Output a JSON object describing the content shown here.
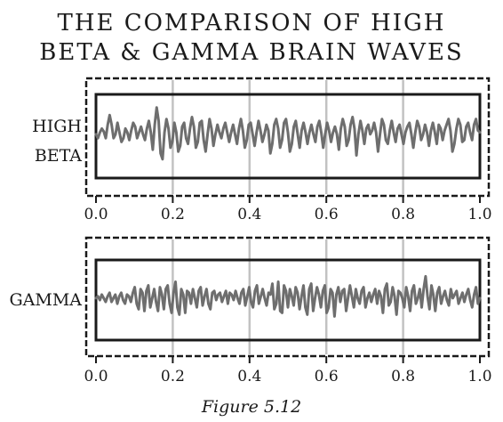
{
  "title_lines": [
    "THE COMPARISON OF HIGH",
    "BETA & GAMMA BRAIN WAVES"
  ],
  "caption": "Figure 5.12",
  "colors": {
    "wave": "#6e6e6e",
    "grid": "#c2c2c2",
    "frame": "#1a1a1a",
    "text": "#1a1a1a"
  },
  "chart_data": [
    {
      "type": "line",
      "row_label_lines": [
        "HIGH",
        "BETA"
      ],
      "x_ticks": [
        "0.0",
        "0.2",
        "0.4",
        "0.6",
        "0.8",
        "1.0"
      ],
      "xlim": [
        0,
        1
      ],
      "ylim": [
        -1,
        1
      ],
      "grid_x": [
        0.2,
        0.4,
        0.6,
        0.8
      ],
      "y_values": [
        0.05,
        -0.05,
        0.1,
        0.2,
        0.12,
        -0.05,
        0.3,
        0.55,
        0.3,
        -0.05,
        0.05,
        0.35,
        0.1,
        -0.15,
        -0.05,
        0.2,
        0.1,
        -0.1,
        0.15,
        0.35,
        0.25,
        -0.05,
        0.1,
        0.25,
        0.05,
        -0.1,
        0.2,
        0.4,
        0.1,
        -0.35,
        0.3,
        0.75,
        0.4,
        -0.45,
        -0.6,
        0.1,
        0.45,
        0.2,
        -0.3,
        -0.15,
        0.35,
        0.1,
        -0.4,
        -0.25,
        0.25,
        0.35,
        -0.05,
        -0.2,
        0.2,
        0.5,
        0.25,
        -0.3,
        -0.15,
        0.35,
        0.4,
        -0.1,
        -0.4,
        0.05,
        0.45,
        0.2,
        -0.25,
        0.05,
        0.3,
        0.1,
        -0.05,
        0.2,
        0.35,
        0.1,
        -0.15,
        0.1,
        0.3,
        0.05,
        -0.2,
        0.2,
        0.45,
        0.15,
        -0.3,
        -0.1,
        0.3,
        0.35,
        0.05,
        -0.25,
        0.1,
        0.4,
        0.15,
        -0.15,
        0.05,
        0.3,
        0.15,
        -0.45,
        -0.2,
        0.3,
        0.45,
        0.2,
        -0.3,
        -0.1,
        0.35,
        0.45,
        0.1,
        -0.4,
        -0.2,
        0.25,
        0.4,
        0.05,
        -0.3,
        0.15,
        0.35,
        0.1,
        -0.2,
        0.1,
        0.3,
        0.05,
        -0.15,
        0.25,
        0.4,
        0.1,
        -0.3,
        0.05,
        0.35,
        0.15,
        -0.15,
        0.1,
        0.25,
        0.05,
        -0.35,
        0.2,
        0.45,
        0.25,
        -0.25,
        -0.1,
        0.3,
        0.5,
        0.2,
        -0.5,
        0.05,
        0.4,
        0.15,
        -0.2,
        0.2,
        0.3,
        0.05,
        0.15,
        0.35,
        0.1,
        -0.4,
        0.05,
        0.45,
        0.3,
        -0.1,
        -0.2,
        0.15,
        0.4,
        0.1,
        -0.15,
        0.2,
        0.3,
        0.05,
        -0.2,
        0.1,
        0.25,
        0.35,
        0.05,
        -0.3,
        0.1,
        0.4,
        0.25,
        -0.1,
        0.05,
        0.3,
        0.1,
        -0.25,
        0.15,
        0.35,
        0.1,
        -0.2,
        0.3,
        0.2,
        -0.1,
        0.15,
        0.3,
        0.45,
        0.15,
        -0.4,
        -0.2,
        0.2,
        0.45,
        0.3,
        -0.15,
        -0.1,
        0.25,
        0.35,
        0.1,
        -0.1,
        0.3,
        0.45,
        0.15,
        0.1
      ]
    },
    {
      "type": "line",
      "row_label_lines": [
        "GAMMA"
      ],
      "x_ticks": [
        "0.0",
        "0.2",
        "0.4",
        "0.6",
        "0.8",
        "1.0"
      ],
      "xlim": [
        0,
        1
      ],
      "ylim": [
        -1,
        1
      ],
      "grid_x": [
        0.2,
        0.4,
        0.6,
        0.8
      ],
      "y_values": [
        0.05,
        0.1,
        0.0,
        0.15,
        0.05,
        -0.05,
        0.1,
        0.2,
        -0.05,
        0.05,
        0.15,
        -0.1,
        0.1,
        0.2,
        0.0,
        -0.1,
        0.15,
        0.1,
        -0.05,
        0.2,
        0.35,
        -0.1,
        -0.25,
        0.3,
        0.2,
        -0.3,
        0.25,
        0.4,
        -0.2,
        0.05,
        0.3,
        -0.05,
        -0.3,
        0.35,
        0.15,
        -0.25,
        0.3,
        0.4,
        -0.1,
        -0.35,
        0.2,
        0.5,
        -0.2,
        -0.4,
        0.3,
        0.15,
        -0.35,
        0.25,
        0.2,
        -0.1,
        0.3,
        0.05,
        -0.2,
        0.25,
        0.35,
        -0.15,
        0.1,
        0.3,
        -0.1,
        -0.25,
        0.2,
        0.25,
        0.0,
        0.15,
        0.2,
        -0.05,
        0.1,
        0.25,
        -0.1,
        0.2,
        0.15,
        0.0,
        0.25,
        0.05,
        -0.1,
        0.2,
        0.3,
        -0.15,
        0.1,
        0.35,
        -0.05,
        -0.2,
        0.25,
        0.4,
        -0.1,
        0.1,
        0.3,
        0.05,
        -0.15,
        0.2,
        0.15,
        0.45,
        -0.25,
        -0.1,
        0.5,
        -0.3,
        -0.35,
        0.4,
        0.25,
        -0.2,
        0.3,
        0.1,
        -0.15,
        0.35,
        0.2,
        -0.25,
        0.1,
        0.4,
        -0.2,
        -0.4,
        0.3,
        0.45,
        -0.3,
        0.05,
        0.35,
        0.15,
        -0.2,
        0.25,
        0.4,
        -0.35,
        -0.2,
        0.3,
        0.2,
        -0.45,
        0.15,
        0.35,
        -0.05,
        0.25,
        0.3,
        -0.3,
        0.05,
        0.4,
        0.1,
        -0.2,
        0.3,
        0.05,
        -0.1,
        0.25,
        0.35,
        -0.2,
        0.05,
        0.2,
        -0.05,
        0.15,
        0.3,
        -0.1,
        0.25,
        0.1,
        -0.35,
        0.3,
        0.45,
        -0.15,
        -0.05,
        0.35,
        0.1,
        -0.4,
        0.25,
        0.2,
        0.05,
        -0.2,
        0.35,
        0.1,
        -0.3,
        0.25,
        0.4,
        -0.1,
        0.05,
        0.3,
        -0.2,
        0.3,
        0.65,
        0.1,
        -0.25,
        0.4,
        0.15,
        -0.3,
        0.2,
        0.35,
        -0.1,
        0.1,
        0.25,
        0.0,
        -0.15,
        0.3,
        0.05,
        0.15,
        0.25,
        -0.1,
        0.05,
        0.2,
        -0.05,
        0.15,
        0.3,
        0.0,
        -0.2,
        0.15,
        0.35,
        -0.1,
        0.05
      ]
    }
  ]
}
